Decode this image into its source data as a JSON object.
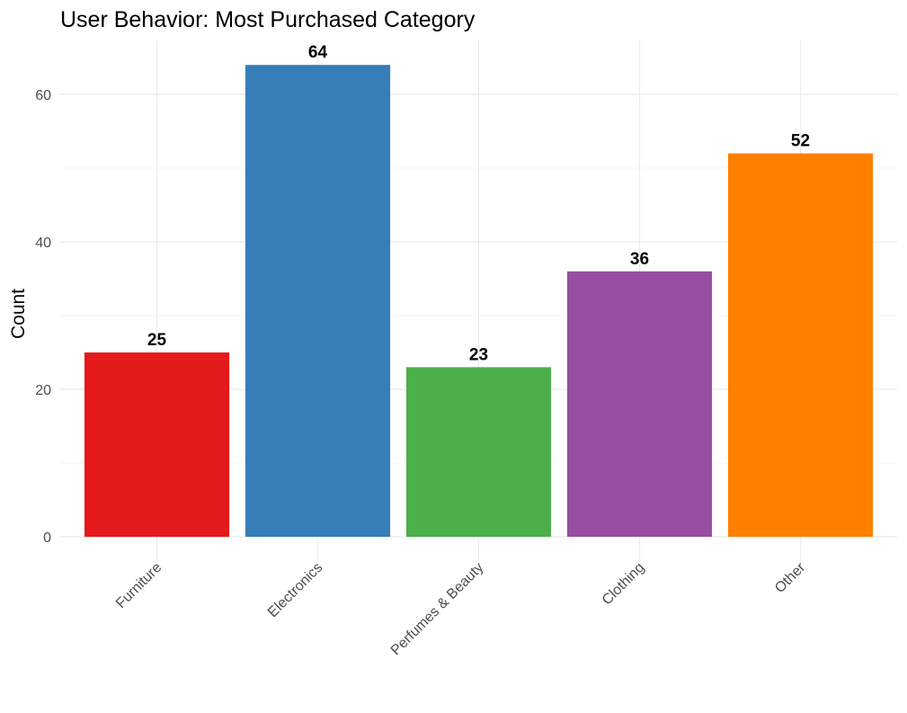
{
  "chart_data": {
    "type": "bar",
    "title": "User Behavior: Most Purchased Category",
    "xlabel": "",
    "ylabel": "Count",
    "categories": [
      "Furniture",
      "Electronics",
      "Perfumes & Beauty",
      "Clothing",
      "Other"
    ],
    "values": [
      25,
      64,
      23,
      36,
      52
    ],
    "colors": [
      "#E41A1C",
      "#377EB8",
      "#4DAF4A",
      "#984EA3",
      "#FF7F00"
    ],
    "ylim": [
      0,
      67.2
    ],
    "y_ticks": [
      0,
      20,
      40,
      60
    ],
    "grid": true,
    "legend": "none",
    "data_labels": true
  }
}
